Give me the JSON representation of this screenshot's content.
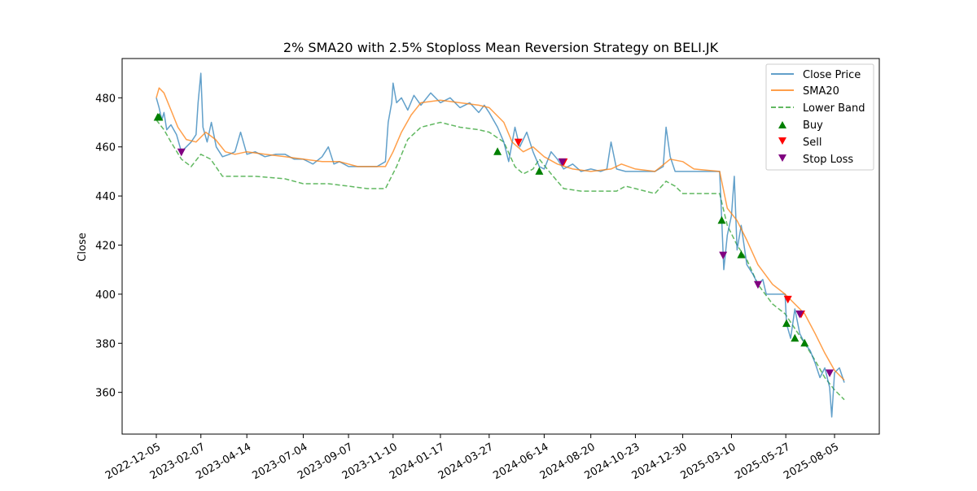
{
  "chart_data": {
    "type": "line",
    "title": "2% SMA20 with 2.5% Stoploss Mean Reversion Strategy on BELI.JK",
    "xlabel": "",
    "ylabel": "Close",
    "x_ticks": [
      "2022-12-05",
      "2023-02-07",
      "2023-04-14",
      "2023-07-04",
      "2023-09-07",
      "2023-11-10",
      "2024-01-17",
      "2024-03-27",
      "2024-06-14",
      "2024-08-20",
      "2024-10-23",
      "2024-12-30",
      "2025-03-10",
      "2025-05-27",
      "2025-08-05"
    ],
    "y_ticks": [
      360,
      380,
      400,
      420,
      440,
      460,
      480
    ],
    "ylim": [
      343,
      496
    ],
    "grid": false,
    "legend_position": "top-right",
    "legend": [
      "Close Price",
      "SMA20",
      "Lower Band",
      "Buy",
      "Sell",
      "Stop Loss"
    ],
    "colors": {
      "close": "#1f77b4",
      "sma": "#ff7f0e",
      "lower": "#2ca02c",
      "buy": "#008000",
      "sell": "#ff0000",
      "stop": "#800080"
    },
    "close_series": [
      [
        "2022-12-05",
        480
      ],
      [
        "2022-12-09",
        476
      ],
      [
        "2022-12-13",
        471
      ],
      [
        "2022-12-16",
        474
      ],
      [
        "2022-12-20",
        467
      ],
      [
        "2022-12-26",
        469
      ],
      [
        "2023-01-03",
        465
      ],
      [
        "2023-01-10",
        458
      ],
      [
        "2023-01-17",
        460
      ],
      [
        "2023-01-24",
        462
      ],
      [
        "2023-01-31",
        465
      ],
      [
        "2023-02-03",
        478
      ],
      [
        "2023-02-07",
        490
      ],
      [
        "2023-02-10",
        468
      ],
      [
        "2023-02-16",
        462
      ],
      [
        "2023-02-22",
        470
      ],
      [
        "2023-03-01",
        460
      ],
      [
        "2023-03-10",
        456
      ],
      [
        "2023-03-20",
        457
      ],
      [
        "2023-03-28",
        458
      ],
      [
        "2023-04-05",
        466
      ],
      [
        "2023-04-14",
        457
      ],
      [
        "2023-04-26",
        458
      ],
      [
        "2023-05-10",
        456
      ],
      [
        "2023-05-25",
        457
      ],
      [
        "2023-06-08",
        457
      ],
      [
        "2023-06-21",
        455
      ],
      [
        "2023-07-04",
        455
      ],
      [
        "2023-07-18",
        453
      ],
      [
        "2023-07-31",
        456
      ],
      [
        "2023-08-09",
        460
      ],
      [
        "2023-08-17",
        453
      ],
      [
        "2023-08-25",
        454
      ],
      [
        "2023-09-07",
        452
      ],
      [
        "2023-09-20",
        452
      ],
      [
        "2023-10-04",
        452
      ],
      [
        "2023-10-18",
        452
      ],
      [
        "2023-10-30",
        454
      ],
      [
        "2023-11-03",
        470
      ],
      [
        "2023-11-08",
        478
      ],
      [
        "2023-11-10",
        486
      ],
      [
        "2023-11-15",
        478
      ],
      [
        "2023-11-22",
        480
      ],
      [
        "2023-12-01",
        475
      ],
      [
        "2023-12-10",
        481
      ],
      [
        "2023-12-20",
        477
      ],
      [
        "2024-01-03",
        482
      ],
      [
        "2024-01-17",
        478
      ],
      [
        "2024-01-31",
        480
      ],
      [
        "2024-02-14",
        476
      ],
      [
        "2024-02-28",
        478
      ],
      [
        "2024-03-12",
        474
      ],
      [
        "2024-03-20",
        477
      ],
      [
        "2024-03-27",
        474
      ],
      [
        "2024-04-08",
        468
      ],
      [
        "2024-04-17",
        462
      ],
      [
        "2024-04-24",
        454
      ],
      [
        "2024-05-03",
        468
      ],
      [
        "2024-05-10",
        460
      ],
      [
        "2024-05-20",
        466
      ],
      [
        "2024-05-29",
        458
      ],
      [
        "2024-06-07",
        452
      ],
      [
        "2024-06-14",
        451
      ],
      [
        "2024-06-24",
        458
      ],
      [
        "2024-07-03",
        455
      ],
      [
        "2024-07-12",
        451
      ],
      [
        "2024-07-25",
        453
      ],
      [
        "2024-08-06",
        450
      ],
      [
        "2024-08-20",
        451
      ],
      [
        "2024-09-03",
        450
      ],
      [
        "2024-09-12",
        451
      ],
      [
        "2024-09-18",
        462
      ],
      [
        "2024-09-26",
        451
      ],
      [
        "2024-10-09",
        450
      ],
      [
        "2024-10-23",
        450
      ],
      [
        "2024-11-06",
        450
      ],
      [
        "2024-11-20",
        450
      ],
      [
        "2024-12-02",
        452
      ],
      [
        "2024-12-06",
        468
      ],
      [
        "2024-12-12",
        456
      ],
      [
        "2024-12-19",
        450
      ],
      [
        "2024-12-30",
        450
      ],
      [
        "2025-01-15",
        450
      ],
      [
        "2025-02-03",
        450
      ],
      [
        "2025-02-21",
        450
      ],
      [
        "2025-02-24",
        430
      ],
      [
        "2025-02-27",
        410
      ],
      [
        "2025-03-04",
        424
      ],
      [
        "2025-03-10",
        432
      ],
      [
        "2025-03-14",
        448
      ],
      [
        "2025-03-18",
        418
      ],
      [
        "2025-03-24",
        428
      ],
      [
        "2025-04-01",
        412
      ],
      [
        "2025-04-10",
        408
      ],
      [
        "2025-04-17",
        404
      ],
      [
        "2025-04-24",
        406
      ],
      [
        "2025-04-29",
        400
      ],
      [
        "2025-05-08",
        400
      ],
      [
        "2025-05-20",
        400
      ],
      [
        "2025-05-26",
        400
      ],
      [
        "2025-05-28",
        388
      ],
      [
        "2025-06-03",
        382
      ],
      [
        "2025-06-09",
        394
      ],
      [
        "2025-06-16",
        384
      ],
      [
        "2025-06-23",
        380
      ],
      [
        "2025-07-01",
        377
      ],
      [
        "2025-07-08",
        372
      ],
      [
        "2025-07-15",
        366
      ],
      [
        "2025-07-22",
        370
      ],
      [
        "2025-07-29",
        362
      ],
      [
        "2025-08-01",
        350
      ],
      [
        "2025-08-05",
        368
      ],
      [
        "2025-08-12",
        370
      ],
      [
        "2025-08-19",
        364
      ]
    ],
    "sma_series": [
      [
        "2022-12-05",
        480
      ],
      [
        "2022-12-09",
        484
      ],
      [
        "2022-12-16",
        482
      ],
      [
        "2022-12-26",
        475
      ],
      [
        "2023-01-05",
        468
      ],
      [
        "2023-01-17",
        463
      ],
      [
        "2023-01-31",
        462
      ],
      [
        "2023-02-14",
        466
      ],
      [
        "2023-02-28",
        463
      ],
      [
        "2023-03-14",
        458
      ],
      [
        "2023-03-28",
        457
      ],
      [
        "2023-04-14",
        458
      ],
      [
        "2023-05-10",
        457
      ],
      [
        "2023-06-08",
        456
      ],
      [
        "2023-07-04",
        455
      ],
      [
        "2023-07-31",
        454
      ],
      [
        "2023-08-25",
        454
      ],
      [
        "2023-09-20",
        452
      ],
      [
        "2023-10-30",
        452
      ],
      [
        "2023-11-10",
        458
      ],
      [
        "2023-11-22",
        466
      ],
      [
        "2023-12-06",
        473
      ],
      [
        "2023-12-20",
        478
      ],
      [
        "2024-01-17",
        479
      ],
      [
        "2024-02-14",
        478
      ],
      [
        "2024-03-12",
        477
      ],
      [
        "2024-03-27",
        476
      ],
      [
        "2024-04-17",
        470
      ],
      [
        "2024-04-29",
        462
      ],
      [
        "2024-05-15",
        458
      ],
      [
        "2024-05-29",
        460
      ],
      [
        "2024-06-14",
        456
      ],
      [
        "2024-07-03",
        453
      ],
      [
        "2024-07-25",
        451
      ],
      [
        "2024-08-20",
        450
      ],
      [
        "2024-09-18",
        451
      ],
      [
        "2024-10-03",
        453
      ],
      [
        "2024-10-23",
        451
      ],
      [
        "2024-11-20",
        450
      ],
      [
        "2024-12-12",
        455
      ],
      [
        "2024-12-30",
        454
      ],
      [
        "2025-01-15",
        451
      ],
      [
        "2025-02-21",
        450
      ],
      [
        "2025-03-04",
        435
      ],
      [
        "2025-03-18",
        430
      ],
      [
        "2025-04-01",
        422
      ],
      [
        "2025-04-17",
        412
      ],
      [
        "2025-05-08",
        404
      ],
      [
        "2025-05-26",
        400
      ],
      [
        "2025-06-09",
        396
      ],
      [
        "2025-06-23",
        392
      ],
      [
        "2025-07-08",
        384
      ],
      [
        "2025-07-22",
        376
      ],
      [
        "2025-08-05",
        369
      ],
      [
        "2025-08-19",
        365
      ]
    ],
    "lower_series": [
      [
        "2022-12-05",
        471
      ],
      [
        "2022-12-16",
        467
      ],
      [
        "2022-12-26",
        462
      ],
      [
        "2023-01-10",
        455
      ],
      [
        "2023-01-24",
        452
      ],
      [
        "2023-02-07",
        457
      ],
      [
        "2023-02-21",
        455
      ],
      [
        "2023-03-10",
        448
      ],
      [
        "2023-03-28",
        448
      ],
      [
        "2023-04-26",
        448
      ],
      [
        "2023-06-08",
        447
      ],
      [
        "2023-07-04",
        445
      ],
      [
        "2023-08-09",
        445
      ],
      [
        "2023-09-07",
        444
      ],
      [
        "2023-10-04",
        443
      ],
      [
        "2023-10-30",
        443
      ],
      [
        "2023-11-15",
        452
      ],
      [
        "2023-12-01",
        463
      ],
      [
        "2023-12-20",
        468
      ],
      [
        "2024-01-17",
        470
      ],
      [
        "2024-02-14",
        468
      ],
      [
        "2024-03-12",
        467
      ],
      [
        "2024-03-27",
        466
      ],
      [
        "2024-04-17",
        462
      ],
      [
        "2024-05-03",
        452
      ],
      [
        "2024-05-15",
        449
      ],
      [
        "2024-05-29",
        451
      ],
      [
        "2024-06-07",
        455
      ],
      [
        "2024-06-24",
        449
      ],
      [
        "2024-07-12",
        443
      ],
      [
        "2024-08-06",
        442
      ],
      [
        "2024-09-03",
        442
      ],
      [
        "2024-09-26",
        442
      ],
      [
        "2024-10-09",
        444
      ],
      [
        "2024-10-23",
        443
      ],
      [
        "2024-11-20",
        441
      ],
      [
        "2024-12-06",
        446
      ],
      [
        "2024-12-19",
        444
      ],
      [
        "2024-12-30",
        441
      ],
      [
        "2025-02-21",
        441
      ],
      [
        "2025-03-04",
        428
      ],
      [
        "2025-03-18",
        420
      ],
      [
        "2025-04-01",
        414
      ],
      [
        "2025-04-17",
        404
      ],
      [
        "2025-05-08",
        396
      ],
      [
        "2025-05-26",
        392
      ],
      [
        "2025-06-09",
        386
      ],
      [
        "2025-06-23",
        380
      ],
      [
        "2025-07-08",
        373
      ],
      [
        "2025-07-22",
        366
      ],
      [
        "2025-08-05",
        361
      ],
      [
        "2025-08-19",
        357
      ]
    ],
    "buy_markers": [
      [
        "2022-12-07",
        472
      ],
      [
        "2022-12-09",
        472
      ],
      [
        "2024-04-08",
        458
      ],
      [
        "2024-06-07",
        450
      ],
      [
        "2025-02-24",
        430
      ],
      [
        "2025-03-24",
        416
      ],
      [
        "2025-05-28",
        388
      ],
      [
        "2025-06-09",
        382
      ],
      [
        "2025-06-23",
        380
      ]
    ],
    "sell_markers": [
      [
        "2024-05-08",
        462
      ],
      [
        "2024-07-12",
        454
      ],
      [
        "2025-05-30",
        398
      ],
      [
        "2025-06-18",
        392
      ]
    ],
    "stop_markers": [
      [
        "2023-01-10",
        458
      ],
      [
        "2024-07-10",
        454
      ],
      [
        "2025-02-26",
        416
      ],
      [
        "2025-04-17",
        404
      ],
      [
        "2025-06-16",
        392
      ],
      [
        "2025-07-29",
        368
      ]
    ]
  }
}
